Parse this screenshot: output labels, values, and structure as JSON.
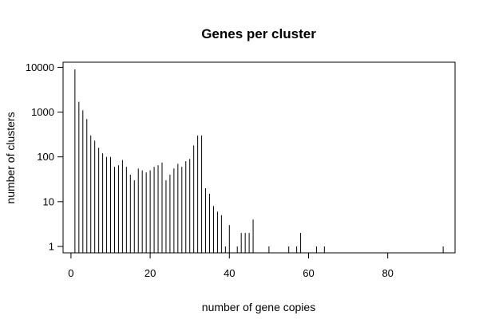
{
  "chart_data": {
    "type": "bar",
    "style": "vertical spikes (histogram type 'h')",
    "title": "Genes per cluster",
    "xlabel": "number of gene copies",
    "ylabel": "number of clusters",
    "y_scale": "log10",
    "xlim": [
      -2,
      97
    ],
    "ylim": [
      0.72,
      13000
    ],
    "x_ticks": [
      0,
      20,
      40,
      60,
      80
    ],
    "x_tick_labels": [
      "0",
      "20",
      "40",
      "60",
      "80"
    ],
    "y_ticks": [
      1,
      10,
      100,
      1000,
      10000
    ],
    "y_tick_labels": [
      "1",
      "10",
      "100",
      "1000",
      "10000"
    ],
    "grid": false,
    "legend": "none",
    "x": [
      1,
      2,
      3,
      4,
      5,
      6,
      7,
      8,
      9,
      10,
      11,
      12,
      13,
      14,
      15,
      16,
      17,
      18,
      19,
      20,
      21,
      22,
      23,
      24,
      25,
      26,
      27,
      28,
      29,
      30,
      31,
      32,
      33,
      34,
      35,
      36,
      37,
      38,
      39,
      40,
      42,
      43,
      44,
      45,
      46,
      50,
      55,
      57,
      58,
      62,
      64,
      94
    ],
    "values": [
      9000,
      1700,
      1100,
      700,
      300,
      230,
      160,
      120,
      100,
      100,
      60,
      65,
      85,
      60,
      40,
      30,
      55,
      50,
      45,
      50,
      60,
      65,
      75,
      30,
      40,
      55,
      70,
      60,
      80,
      90,
      180,
      300,
      300,
      20,
      15,
      8,
      6,
      5,
      1,
      3,
      1,
      2,
      2,
      2,
      4,
      1,
      1,
      1,
      2,
      1,
      1,
      1
    ]
  }
}
